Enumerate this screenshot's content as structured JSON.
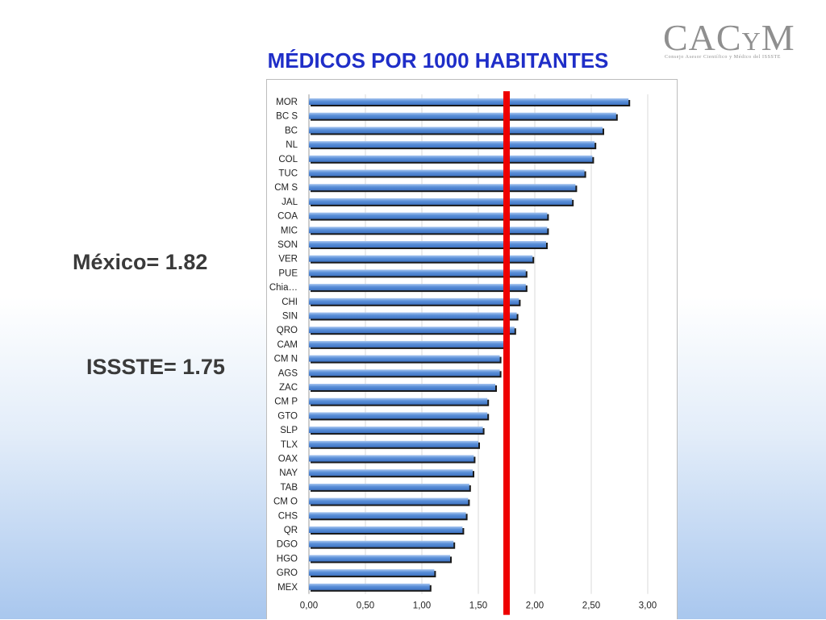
{
  "logo": {
    "main_big": "CAC",
    "main_small": "Y",
    "main_end": "M",
    "subtitle": "Consejo Asesor Científico y Médico del ISSSTE"
  },
  "title": "MÉDICOS POR 1000 HABITANTES",
  "annotations": {
    "mexico": "México= 1.82",
    "issste": "ISSSTE= 1.75"
  },
  "chart_data": {
    "type": "bar",
    "orientation": "horizontal",
    "title": "MÉDICOS POR 1000 HABITANTES",
    "categories": [
      "MOR",
      "BC S",
      "BC",
      "NL",
      "COL",
      "TUC",
      "CM S",
      "JAL",
      "COA",
      "MIC",
      "SON",
      "VER",
      "PUE",
      "Chia…",
      "CHI",
      "SIN",
      "QRO",
      "CAM",
      "CM N",
      "AGS",
      "ZAC",
      "CM P",
      "GTO",
      "SLP",
      "TLX",
      "OAX",
      "NAY",
      "TAB",
      "CM O",
      "CHS",
      "QR",
      "DGO",
      "HGO",
      "GRO",
      "MEX"
    ],
    "values": [
      2.83,
      2.72,
      2.6,
      2.53,
      2.51,
      2.44,
      2.36,
      2.33,
      2.11,
      2.11,
      2.1,
      1.98,
      1.92,
      1.92,
      1.86,
      1.84,
      1.82,
      1.75,
      1.69,
      1.69,
      1.65,
      1.58,
      1.58,
      1.54,
      1.5,
      1.46,
      1.45,
      1.42,
      1.41,
      1.39,
      1.36,
      1.28,
      1.25,
      1.11,
      1.07
    ],
    "xlim": [
      0,
      3
    ],
    "xticks": [
      "0,00",
      "0,50",
      "1,00",
      "1,50",
      "2,00",
      "2,50",
      "3,00"
    ],
    "grid": true,
    "reference_line": {
      "value": 1.75,
      "color": "#ee0000"
    },
    "colors": {
      "bar": "#5a8fd8",
      "bar_highlight": "#a8c6f0",
      "bar_shadow": "#1a1a1a",
      "grid": "#d9d9d9"
    }
  }
}
